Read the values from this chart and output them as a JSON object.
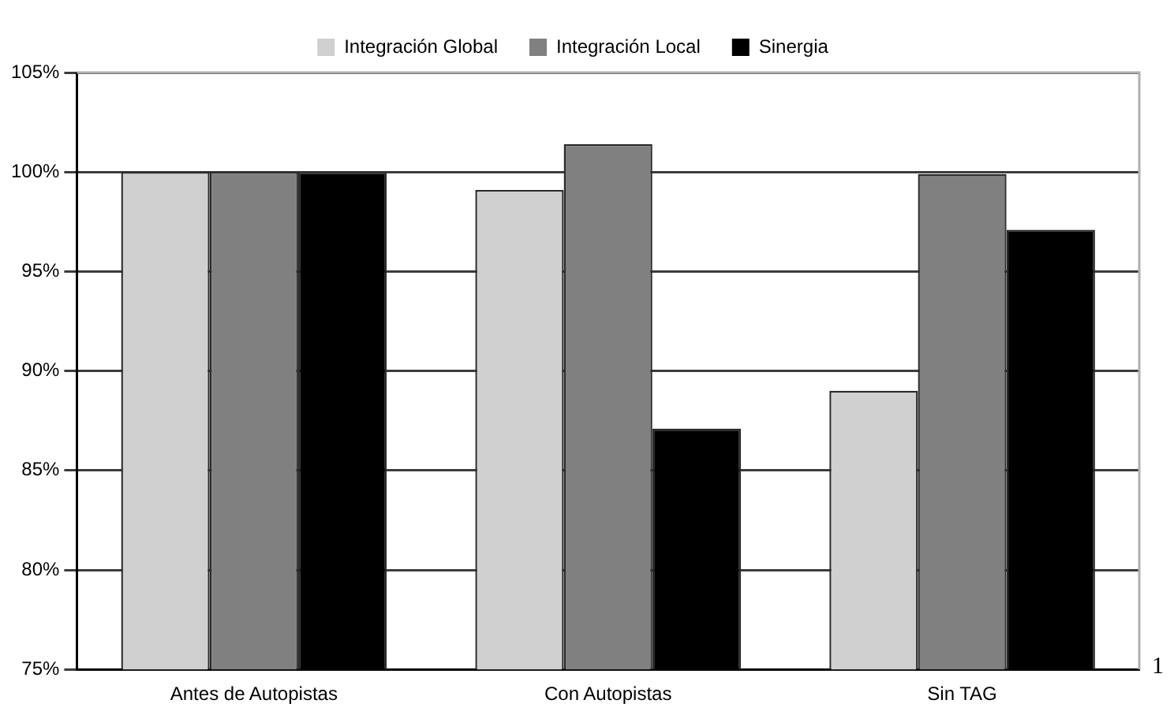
{
  "chart_data": {
    "type": "bar",
    "categories": [
      "Antes de Autopistas",
      "Con Autopistas",
      "Sin TAG"
    ],
    "series": [
      {
        "name": "Integración Global",
        "color": "#d0d0d0",
        "values": [
          100,
          99.1,
          89.0
        ]
      },
      {
        "name": "Integración Local",
        "color": "#808080",
        "values": [
          100,
          101.4,
          99.9
        ]
      },
      {
        "name": "Sinergia",
        "color": "#000000",
        "values": [
          100,
          87.1,
          97.1
        ]
      }
    ],
    "ylim": [
      75,
      105
    ],
    "yticks": [
      {
        "value": 75,
        "label": "75%"
      },
      {
        "value": 80,
        "label": "80%"
      },
      {
        "value": 85,
        "label": "85%"
      },
      {
        "value": 90,
        "label": "90%"
      },
      {
        "value": 95,
        "label": "95%"
      },
      {
        "value": 100,
        "label": "100%"
      },
      {
        "value": 105,
        "label": "105%"
      }
    ],
    "grid": "y",
    "legend": "top",
    "annotations": [
      "1"
    ]
  }
}
